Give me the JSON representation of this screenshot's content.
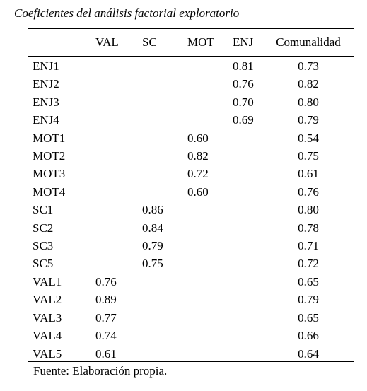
{
  "caption": "Coeficientes del análisis factorial exploratorio",
  "table": {
    "headers": {
      "item": "",
      "val": "VAL",
      "sc": "SC",
      "mot": "MOT",
      "enj": "ENJ",
      "comunalidad": "Comunalidad"
    },
    "rows": [
      {
        "item": "ENJ1",
        "val": "",
        "sc": "",
        "mot": "",
        "enj": "0.81",
        "comunalidad": "0.73"
      },
      {
        "item": "ENJ2",
        "val": "",
        "sc": "",
        "mot": "",
        "enj": "0.76",
        "comunalidad": "0.82"
      },
      {
        "item": "ENJ3",
        "val": "",
        "sc": "",
        "mot": "",
        "enj": "0.70",
        "comunalidad": "0.80"
      },
      {
        "item": "ENJ4",
        "val": "",
        "sc": "",
        "mot": "",
        "enj": "0.69",
        "comunalidad": "0.79"
      },
      {
        "item": "MOT1",
        "val": "",
        "sc": "",
        "mot": "0.60",
        "enj": "",
        "comunalidad": "0.54"
      },
      {
        "item": "MOT2",
        "val": "",
        "sc": "",
        "mot": "0.82",
        "enj": "",
        "comunalidad": "0.75"
      },
      {
        "item": "MOT3",
        "val": "",
        "sc": "",
        "mot": "0.72",
        "enj": "",
        "comunalidad": "0.61"
      },
      {
        "item": "MOT4",
        "val": "",
        "sc": "",
        "mot": "0.60",
        "enj": "",
        "comunalidad": "0.76"
      },
      {
        "item": "SC1",
        "val": "",
        "sc": "0.86",
        "mot": "",
        "enj": "",
        "comunalidad": "0.80"
      },
      {
        "item": "SC2",
        "val": "",
        "sc": "0.84",
        "mot": "",
        "enj": "",
        "comunalidad": "0.78"
      },
      {
        "item": "SC3",
        "val": "",
        "sc": "0.79",
        "mot": "",
        "enj": "",
        "comunalidad": "0.71"
      },
      {
        "item": "SC5",
        "val": "",
        "sc": "0.75",
        "mot": "",
        "enj": "",
        "comunalidad": "0.72"
      },
      {
        "item": "VAL1",
        "val": "0.76",
        "sc": "",
        "mot": "",
        "enj": "",
        "comunalidad": "0.65"
      },
      {
        "item": "VAL2",
        "val": "0.89",
        "sc": "",
        "mot": "",
        "enj": "",
        "comunalidad": "0.79"
      },
      {
        "item": "VAL3",
        "val": "0.77",
        "sc": "",
        "mot": "",
        "enj": "",
        "comunalidad": "0.65"
      },
      {
        "item": "VAL4",
        "val": "0.74",
        "sc": "",
        "mot": "",
        "enj": "",
        "comunalidad": "0.66"
      },
      {
        "item": "VAL5",
        "val": "0.61",
        "sc": "",
        "mot": "",
        "enj": "",
        "comunalidad": "0.64"
      }
    ]
  },
  "source": "Fuente: Elaboración propia."
}
